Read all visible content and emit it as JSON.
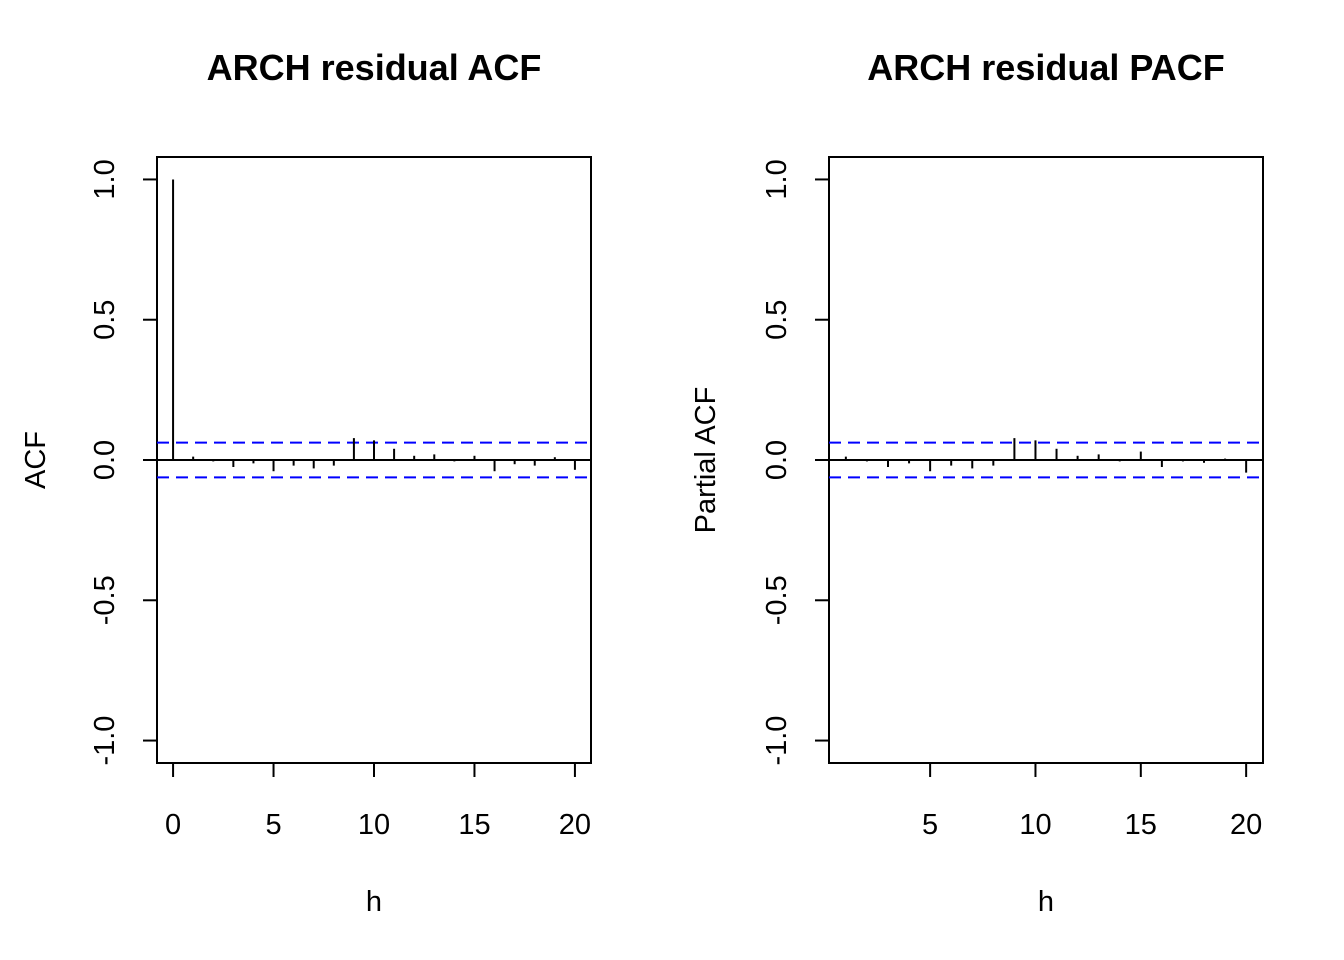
{
  "chart_data": [
    {
      "type": "bar",
      "title": "ARCH residual ACF",
      "xlabel": "h",
      "ylabel": "ACF",
      "xlim": [
        -0.8,
        20.8
      ],
      "ylim": [
        -1.08,
        1.08
      ],
      "x_ticks": [
        0,
        5,
        10,
        15,
        20
      ],
      "y_ticks": [
        -1.0,
        -0.5,
        0.0,
        0.5,
        1.0
      ],
      "y_tick_labels": [
        "-1.0",
        "-0.5",
        "0.0",
        "0.5",
        "1.0"
      ],
      "confidence_bounds": [
        0.062,
        -0.062
      ],
      "bound_color": "#0000ff",
      "x": [
        0,
        1,
        2,
        3,
        4,
        5,
        6,
        7,
        8,
        9,
        10,
        11,
        12,
        13,
        14,
        15,
        16,
        17,
        18,
        19,
        20
      ],
      "values": [
        1.0,
        0.012,
        -0.005,
        -0.025,
        -0.012,
        -0.04,
        -0.02,
        -0.03,
        -0.02,
        0.078,
        0.07,
        0.04,
        0.015,
        0.02,
        -0.005,
        0.015,
        -0.04,
        -0.015,
        -0.02,
        0.01,
        -0.035
      ]
    },
    {
      "type": "bar",
      "title": "ARCH residual PACF",
      "xlabel": "h",
      "ylabel": "Partial ACF",
      "xlim": [
        0.2,
        20.8
      ],
      "ylim": [
        -1.08,
        1.08
      ],
      "x_ticks": [
        5,
        10,
        15,
        20
      ],
      "y_ticks": [
        -1.0,
        -0.5,
        0.0,
        0.5,
        1.0
      ],
      "y_tick_labels": [
        "-1.0",
        "-0.5",
        "0.0",
        "0.5",
        "1.0"
      ],
      "confidence_bounds": [
        0.062,
        -0.062
      ],
      "bound_color": "#0000ff",
      "x": [
        1,
        2,
        3,
        4,
        5,
        6,
        7,
        8,
        9,
        10,
        11,
        12,
        13,
        14,
        15,
        16,
        17,
        18,
        19,
        20
      ],
      "values": [
        0.012,
        -0.005,
        -0.025,
        -0.012,
        -0.04,
        -0.02,
        -0.03,
        -0.02,
        0.078,
        0.07,
        0.04,
        0.015,
        0.02,
        -0.005,
        0.03,
        -0.025,
        -0.005,
        -0.01,
        0.005,
        -0.045
      ]
    }
  ]
}
